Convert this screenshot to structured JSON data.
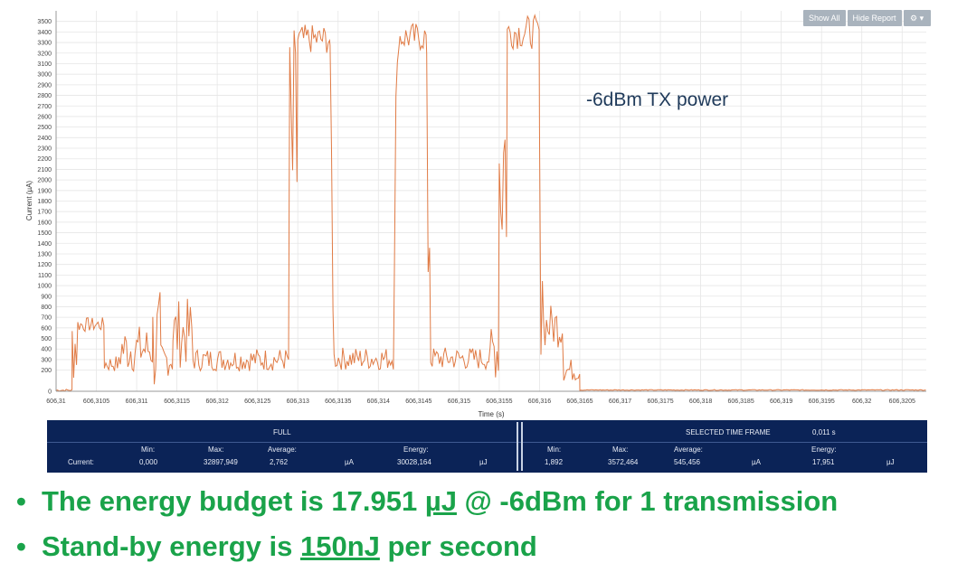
{
  "chart_data": {
    "type": "line",
    "annotation": "-6dBm TX power",
    "xlabel": "Time (s)",
    "ylabel": "Current (µA)",
    "x_ticks": [
      "606,31",
      "606,3105",
      "606,311",
      "606,3115",
      "606,312",
      "606,3125",
      "606,313",
      "606,3135",
      "606,314",
      "606,3145",
      "606,315",
      "606,3155",
      "606,316",
      "606,3165",
      "606,317",
      "606,3175",
      "606,318",
      "606,3185",
      "606,319",
      "606,3195",
      "606,32",
      "606,3205"
    ],
    "y_ticks": [
      "0",
      "200",
      "300",
      "400",
      "500",
      "600",
      "700",
      "800",
      "900",
      "1000",
      "1100",
      "1200",
      "1300",
      "1400",
      "1500",
      "1600",
      "1700",
      "1800",
      "1900",
      "2000",
      "2100",
      "2200",
      "2300",
      "2400",
      "2500",
      "2600",
      "2700",
      "2800",
      "2900",
      "3000",
      "3100",
      "3200",
      "3300",
      "3400",
      "3500"
    ],
    "xlim": [
      606.31,
      606.3208
    ],
    "ylim": [
      0,
      3600
    ],
    "grid": true,
    "series": [
      {
        "color": "#e07b45",
        "segments": [
          {
            "x0": 606.31,
            "x1": 606.3102,
            "mean": 10,
            "amp": 10
          },
          {
            "x0": 606.3102,
            "x1": 606.31027,
            "mean": 450,
            "amp": 380
          },
          {
            "x0": 606.31027,
            "x1": 606.3106,
            "mean": 630,
            "amp": 70
          },
          {
            "x0": 606.3106,
            "x1": 606.3108,
            "mean": 260,
            "amp": 80
          },
          {
            "x0": 606.3108,
            "x1": 606.3112,
            "mean": 400,
            "amp": 230
          },
          {
            "x0": 606.3112,
            "x1": 606.3113,
            "mean": 450,
            "amp": 520
          },
          {
            "x0": 606.3113,
            "x1": 606.31145,
            "mean": 300,
            "amp": 160
          },
          {
            "x0": 606.31145,
            "x1": 606.3117,
            "mean": 550,
            "amp": 330
          },
          {
            "x0": 606.3117,
            "x1": 606.3129,
            "mean": 300,
            "amp": 110
          },
          {
            "x0": 606.3129,
            "x1": 606.313,
            "mean": 2200,
            "amp": 1300
          },
          {
            "x0": 606.313,
            "x1": 606.3134,
            "mean": 3330,
            "amp": 140
          },
          {
            "x0": 606.3134,
            "x1": 606.31345,
            "mean": 1800,
            "amp": 1500
          },
          {
            "x0": 606.31345,
            "x1": 606.3142,
            "mean": 310,
            "amp": 110
          },
          {
            "x0": 606.3142,
            "x1": 606.31425,
            "mean": 2200,
            "amp": 1300
          },
          {
            "x0": 606.31425,
            "x1": 606.3146,
            "mean": 3350,
            "amp": 140
          },
          {
            "x0": 606.3146,
            "x1": 606.31465,
            "mean": 1800,
            "amp": 1500
          },
          {
            "x0": 606.31465,
            "x1": 606.3154,
            "mean": 310,
            "amp": 110
          },
          {
            "x0": 606.3154,
            "x1": 606.3155,
            "mean": 400,
            "amp": 300
          },
          {
            "x0": 606.3155,
            "x1": 606.3156,
            "mean": 2200,
            "amp": 1300
          },
          {
            "x0": 606.3156,
            "x1": 606.316,
            "mean": 3400,
            "amp": 160
          },
          {
            "x0": 606.316,
            "x1": 606.31605,
            "mean": 1500,
            "amp": 1200
          },
          {
            "x0": 606.31605,
            "x1": 606.3163,
            "mean": 620,
            "amp": 210
          },
          {
            "x0": 606.3163,
            "x1": 606.3165,
            "mean": 200,
            "amp": 110
          },
          {
            "x0": 606.3165,
            "x1": 606.3208,
            "mean": 12,
            "amp": 4
          }
        ]
      }
    ]
  },
  "toolbar": {
    "show_all": "Show All",
    "hide_report": "Hide Report",
    "gear_icon": "gear-icon",
    "caret_icon": "caret-down-icon"
  },
  "report": {
    "full": {
      "header": "FULL",
      "row_label": "Current:",
      "min_label": "Min:",
      "min": "0,000",
      "max_label": "Max:",
      "max": "32897,949",
      "avg_label": "Average:",
      "avg": "2,762",
      "avg_unit": "µA",
      "energy_label": "Energy:",
      "energy": "30028,164",
      "energy_unit": "µJ"
    },
    "selected": {
      "header": "SELECTED TIME FRAME",
      "duration": "0,011 s",
      "min_label": "Min:",
      "min": "1,892",
      "max_label": "Max:",
      "max": "3572,464",
      "avg_label": "Average:",
      "avg": "545,456",
      "avg_unit": "µA",
      "energy_label": "Energy:",
      "energy": "17,951",
      "energy_unit": "µJ"
    }
  },
  "bullets": {
    "b1_pre": "The energy budget  is 17.951 ",
    "b1_unit": "µJ",
    "b1_post": " @ -6dBm for 1 transmission",
    "b2_pre": "Stand-by energy is ",
    "b2_val": "150nJ",
    "b2_post": " per second"
  },
  "colors": {
    "trace": "#e07b45",
    "panel": "#0b2357",
    "bullet_text": "#1aa34a",
    "toolbar_button": "#a9b3bd"
  }
}
